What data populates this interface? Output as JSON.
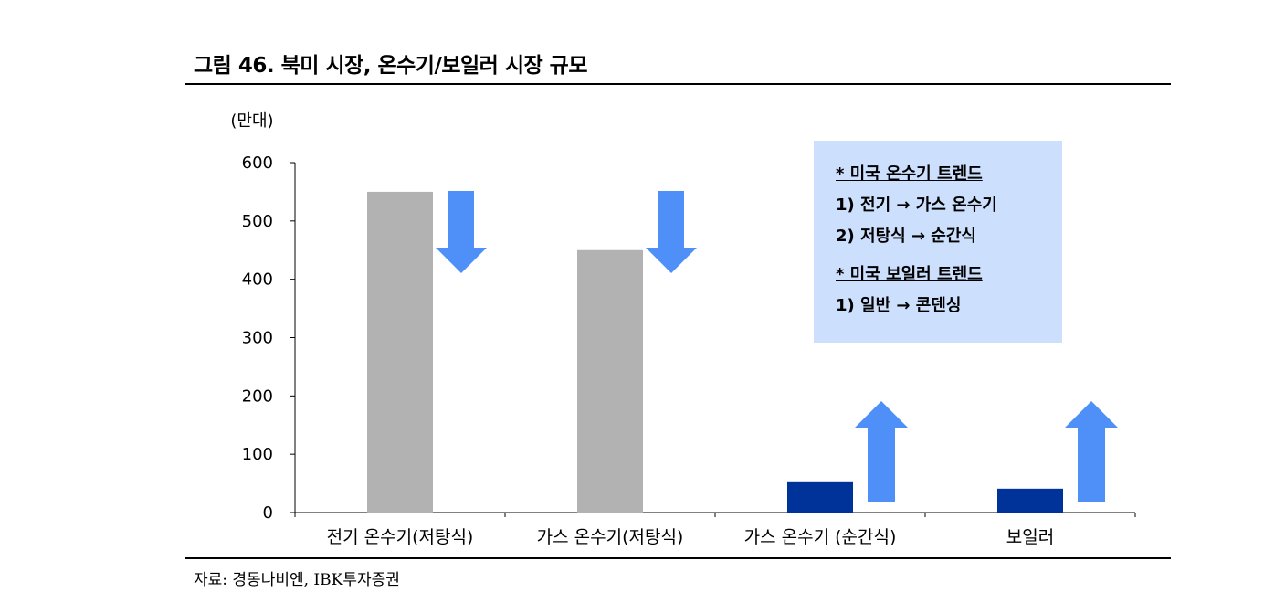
{
  "figure": {
    "title": "그림 46. 북미 시장, 온수기/보일러 시장 규모",
    "source": "자료: 경동나비엔, IBK투자증권"
  },
  "chart_data": {
    "type": "bar",
    "unit_label": "(만대)",
    "categories": [
      "전기 온수기(저탕식)",
      "가스 온수기(저탕식)",
      "가스 온수기 (순간식)",
      "보일러"
    ],
    "values": [
      550,
      450,
      52,
      41
    ],
    "bar_colors": [
      "#b2b2b2",
      "#b2b2b2",
      "#003399",
      "#003399"
    ],
    "trend_arrows": [
      "down",
      "down",
      "up",
      "up"
    ],
    "arrow_color": "#4f8ff8",
    "ylim": [
      0,
      600
    ],
    "yticks": [
      0,
      100,
      200,
      300,
      400,
      500,
      600
    ],
    "grid": false
  },
  "note": {
    "lines": [
      "* 미국 온수기 트렌드",
      "1) 전기 → 가스 온수기",
      "2) 저탕식 → 순간식",
      "* 미국 보일러 트렌드",
      "1) 일반 → 콘덴싱"
    ]
  }
}
